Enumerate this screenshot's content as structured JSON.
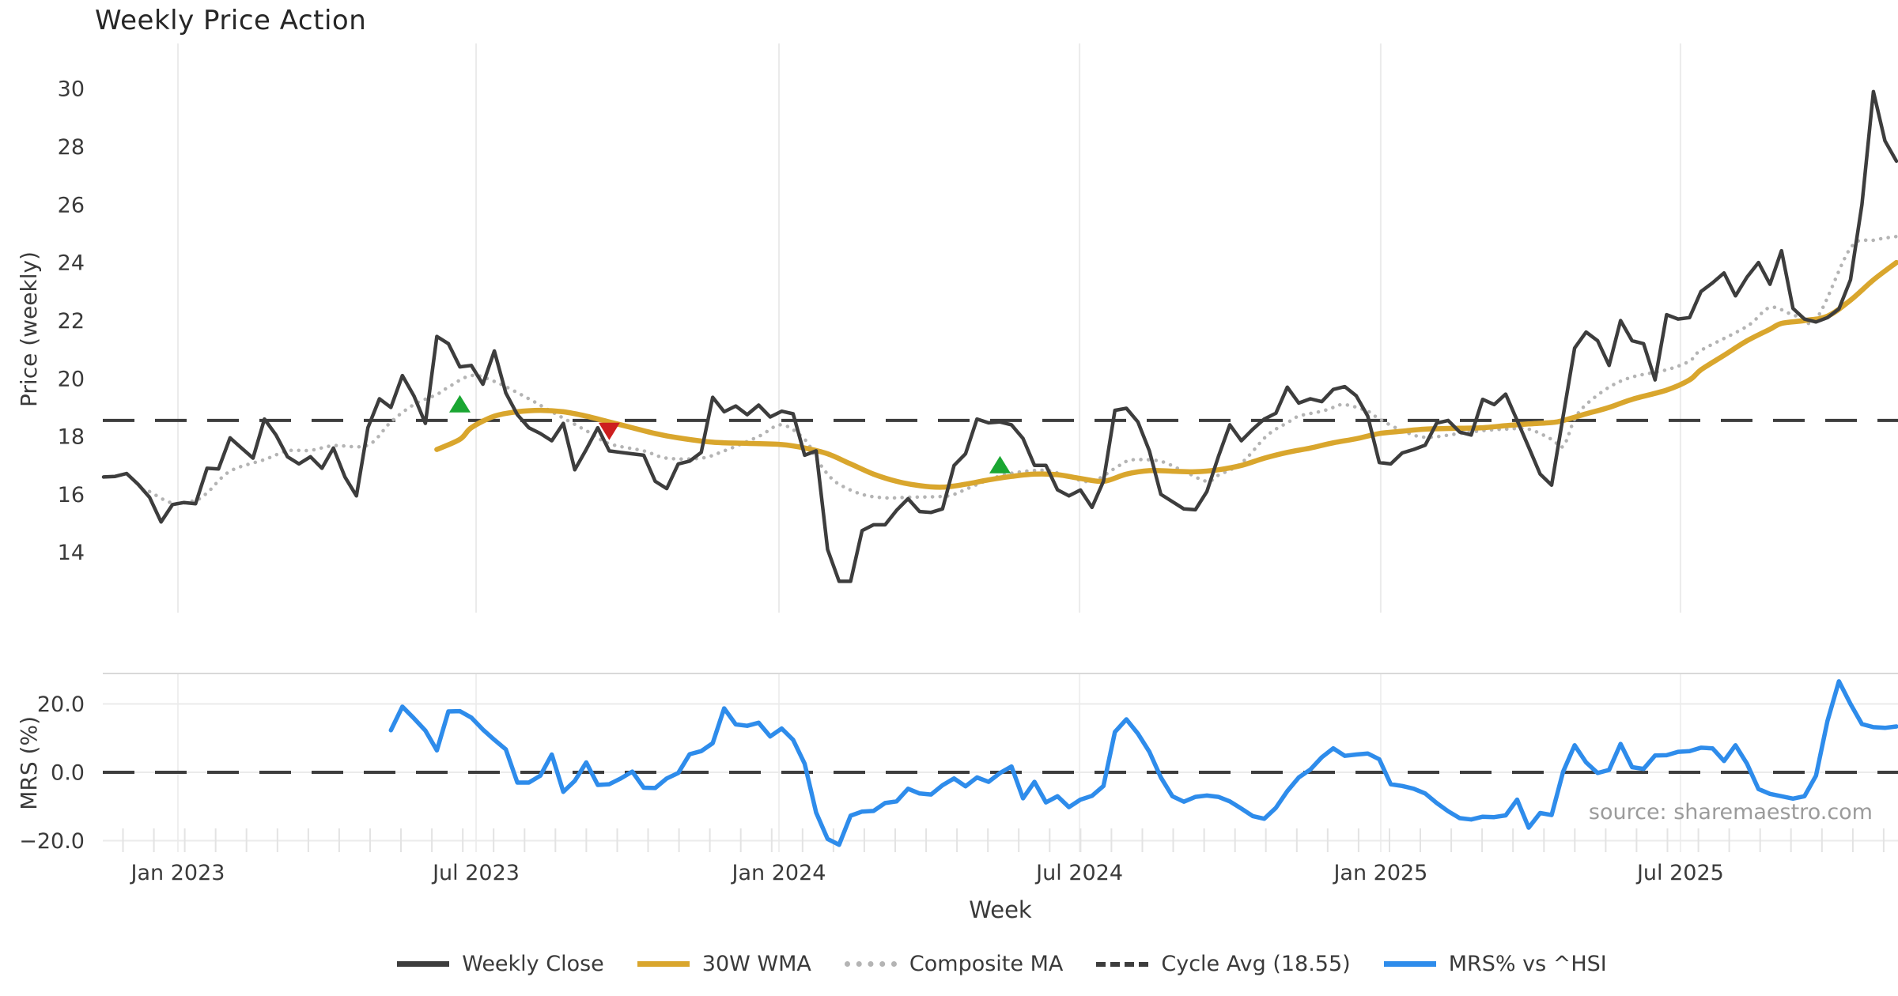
{
  "title": "Weekly Price Action",
  "source_note": "source: sharemaestro.com",
  "axes": {
    "price": {
      "label": "Price (weekly)",
      "ticks": [
        14,
        16,
        18,
        20,
        22,
        24,
        26,
        28,
        30
      ],
      "ylim": [
        11.92,
        31.56
      ]
    },
    "mrs": {
      "label": "MRS (%)",
      "ticks": [
        {
          "label": "20.0",
          "value": 20
        },
        {
          "label": "0.0",
          "value": 0
        },
        {
          "label": "−20.0",
          "value": -20
        }
      ],
      "ylim": [
        -23.35,
        28.9
      ]
    },
    "x": {
      "label": "Week",
      "ticks": [
        {
          "label": "Jan 2023",
          "week": 6.47
        },
        {
          "label": "Jul 2023",
          "week": 32.41
        },
        {
          "label": "Jan 2024",
          "week": 58.77
        },
        {
          "label": "Jul 2024",
          "week": 84.92
        },
        {
          "label": "Jan 2025",
          "week": 111.13
        },
        {
          "label": "Jul 2025",
          "week": 137.21
        }
      ]
    }
  },
  "legend": [
    {
      "label": "Weekly Close",
      "color": "#3d3d3d",
      "style": "solid"
    },
    {
      "label": "30W WMA",
      "color": "#d9a62d",
      "style": "solid"
    },
    {
      "label": "Composite MA",
      "color": "#b4b4b4",
      "style": "dotted"
    },
    {
      "label": "Cycle Avg (18.55)",
      "color": "#3d3d3d",
      "style": "dashed"
    },
    {
      "label": "MRS% vs ^HSI",
      "color": "#2e8ceb",
      "style": "solid"
    }
  ],
  "chart_data": {
    "type": "line",
    "title": "Weekly Price Action",
    "xlabel": "Week",
    "x_unit": "week_index",
    "panels": {
      "price": {
        "ylabel": "Price (weekly)",
        "ylim": [
          11.92,
          31.56
        ]
      },
      "mrs": {
        "ylabel": "MRS (%)",
        "ylim": [
          -23.35,
          28.9
        ]
      }
    },
    "cycle_avg": {
      "name": "Cycle Avg (18.55)",
      "value": 18.55,
      "color": "#3d3d3d"
    },
    "mrs_zero_line": {
      "value": 0,
      "color": "#3d3d3d"
    },
    "series": [
      {
        "name": "Weekly Close",
        "panel": "price",
        "color": "#3d3d3d",
        "style": "solid",
        "start_week": 0,
        "values": [
          16.6,
          16.62,
          16.72,
          16.35,
          15.9,
          15.05,
          15.65,
          15.72,
          15.68,
          16.9,
          16.88,
          17.95,
          17.6,
          17.25,
          18.6,
          18.05,
          17.3,
          17.05,
          17.3,
          16.9,
          17.6,
          16.6,
          15.95,
          18.3,
          19.3,
          19.0,
          20.1,
          19.4,
          18.45,
          21.45,
          21.2,
          20.4,
          20.45,
          19.8,
          20.95,
          19.5,
          18.75,
          18.3,
          18.1,
          17.85,
          18.45,
          16.85,
          17.55,
          18.3,
          17.5,
          17.45,
          17.4,
          17.35,
          16.45,
          16.2,
          17.05,
          17.15,
          17.45,
          19.35,
          18.85,
          19.05,
          18.75,
          19.08,
          18.67,
          18.87,
          18.78,
          17.35,
          17.5,
          14.1,
          13.0,
          13.0,
          14.75,
          14.95,
          14.95,
          15.45,
          15.85,
          15.41,
          15.38,
          15.5,
          17.0,
          17.4,
          18.6,
          18.47,
          18.5,
          18.4,
          17.93,
          17.0,
          17.0,
          16.16,
          15.95,
          16.15,
          15.55,
          16.45,
          18.9,
          18.97,
          18.5,
          17.5,
          16.0,
          15.75,
          15.5,
          15.47,
          16.1,
          17.3,
          18.4,
          17.85,
          18.25,
          18.6,
          18.8,
          19.7,
          19.15,
          19.3,
          19.2,
          19.62,
          19.72,
          19.4,
          18.7,
          17.1,
          17.05,
          17.43,
          17.55,
          17.7,
          18.46,
          18.55,
          18.15,
          18.05,
          19.28,
          19.1,
          19.46,
          18.55,
          17.63,
          16.7,
          16.32,
          18.7,
          21.05,
          21.6,
          21.3,
          20.45,
          22.0,
          21.3,
          21.2,
          19.95,
          22.2,
          22.05,
          22.1,
          23.0,
          23.3,
          23.64,
          22.85,
          23.5,
          24.0,
          23.25,
          24.41,
          22.42,
          22.05,
          21.95,
          22.1,
          22.4,
          23.4,
          26.0,
          29.9,
          28.2,
          27.5
        ]
      },
      {
        "name": "30W WMA",
        "panel": "price",
        "color": "#d9a62d",
        "style": "solid",
        "points": [
          [
            29,
            17.55
          ],
          [
            31,
            17.9
          ],
          [
            32,
            18.3
          ],
          [
            34,
            18.7
          ],
          [
            36,
            18.85
          ],
          [
            38,
            18.9
          ],
          [
            40,
            18.85
          ],
          [
            42,
            18.7
          ],
          [
            44,
            18.5
          ],
          [
            46,
            18.3
          ],
          [
            48,
            18.1
          ],
          [
            50,
            17.95
          ],
          [
            53,
            17.8
          ],
          [
            56,
            17.76
          ],
          [
            59,
            17.72
          ],
          [
            61,
            17.6
          ],
          [
            63,
            17.4
          ],
          [
            65,
            17.05
          ],
          [
            67,
            16.7
          ],
          [
            69,
            16.45
          ],
          [
            71,
            16.3
          ],
          [
            73,
            16.25
          ],
          [
            75,
            16.35
          ],
          [
            77,
            16.5
          ],
          [
            79,
            16.62
          ],
          [
            81,
            16.7
          ],
          [
            83,
            16.68
          ],
          [
            85,
            16.55
          ],
          [
            87,
            16.45
          ],
          [
            89,
            16.7
          ],
          [
            91,
            16.82
          ],
          [
            93,
            16.8
          ],
          [
            95,
            16.78
          ],
          [
            97,
            16.85
          ],
          [
            99,
            17.0
          ],
          [
            101,
            17.25
          ],
          [
            103,
            17.45
          ],
          [
            105,
            17.6
          ],
          [
            107,
            17.78
          ],
          [
            109,
            17.92
          ],
          [
            111,
            18.1
          ],
          [
            113,
            18.18
          ],
          [
            115,
            18.25
          ],
          [
            118,
            18.28
          ],
          [
            120,
            18.3
          ],
          [
            122,
            18.37
          ],
          [
            124,
            18.43
          ],
          [
            126,
            18.48
          ],
          [
            127,
            18.55
          ],
          [
            129,
            18.78
          ],
          [
            131,
            19.0
          ],
          [
            133,
            19.28
          ],
          [
            136,
            19.6
          ],
          [
            138,
            19.95
          ],
          [
            139,
            20.3
          ],
          [
            141,
            20.8
          ],
          [
            143,
            21.3
          ],
          [
            145,
            21.7
          ],
          [
            146,
            21.9
          ],
          [
            148,
            22.0
          ],
          [
            150,
            22.15
          ],
          [
            152,
            22.7
          ],
          [
            154,
            23.4
          ],
          [
            156,
            24.0
          ]
        ]
      },
      {
        "name": "Composite MA",
        "panel": "price",
        "color": "#b4b4b4",
        "style": "dotted",
        "points": [
          [
            4,
            16.1
          ],
          [
            6,
            15.7
          ],
          [
            8,
            15.8
          ],
          [
            9,
            16.05
          ],
          [
            11,
            16.8
          ],
          [
            14,
            17.2
          ],
          [
            16,
            17.5
          ],
          [
            18,
            17.52
          ],
          [
            20,
            17.68
          ],
          [
            23,
            17.7
          ],
          [
            25,
            18.5
          ],
          [
            27,
            19.1
          ],
          [
            29,
            19.45
          ],
          [
            30,
            19.7
          ],
          [
            32,
            20.1
          ],
          [
            34,
            19.9
          ],
          [
            37,
            19.3
          ],
          [
            39,
            18.85
          ],
          [
            42,
            18.2
          ],
          [
            44,
            17.75
          ],
          [
            47,
            17.5
          ],
          [
            49,
            17.25
          ],
          [
            52,
            17.25
          ],
          [
            54,
            17.5
          ],
          [
            57,
            18.0
          ],
          [
            59,
            18.4
          ],
          [
            61,
            17.9
          ],
          [
            62,
            17.25
          ],
          [
            63,
            16.7
          ],
          [
            64,
            16.35
          ],
          [
            66,
            16.0
          ],
          [
            68,
            15.88
          ],
          [
            70,
            15.9
          ],
          [
            73,
            15.93
          ],
          [
            74,
            16.0
          ],
          [
            75,
            16.17
          ],
          [
            77,
            16.5
          ],
          [
            79,
            16.73
          ],
          [
            82,
            16.83
          ],
          [
            84,
            16.6
          ],
          [
            86,
            16.45
          ],
          [
            88,
            16.9
          ],
          [
            89,
            17.14
          ],
          [
            90,
            17.2
          ],
          [
            92,
            17.14
          ],
          [
            94,
            16.8
          ],
          [
            96,
            16.45
          ],
          [
            97,
            16.66
          ],
          [
            99,
            17.08
          ],
          [
            101,
            17.94
          ],
          [
            102,
            18.25
          ],
          [
            103,
            18.47
          ],
          [
            104,
            18.7
          ],
          [
            106,
            18.87
          ],
          [
            107,
            19.0
          ],
          [
            108,
            19.1
          ],
          [
            110,
            18.87
          ],
          [
            111,
            18.6
          ],
          [
            113,
            18.2
          ],
          [
            115,
            17.97
          ],
          [
            118,
            18.1
          ],
          [
            120,
            18.2
          ],
          [
            122,
            18.25
          ],
          [
            124,
            18.25
          ],
          [
            126,
            17.9
          ],
          [
            127,
            17.66
          ],
          [
            128,
            18.6
          ],
          [
            129,
            19.1
          ],
          [
            131,
            19.7
          ],
          [
            133,
            20.05
          ],
          [
            136,
            20.3
          ],
          [
            138,
            20.6
          ],
          [
            139,
            20.97
          ],
          [
            143,
            21.8
          ],
          [
            145,
            22.45
          ],
          [
            147,
            22.2
          ],
          [
            149,
            22.05
          ],
          [
            152,
            24.5
          ],
          [
            154,
            24.77
          ],
          [
            156,
            24.9
          ]
        ]
      },
      {
        "name": "MRS% vs ^HSI",
        "panel": "mrs",
        "color": "#2e8ceb",
        "style": "solid",
        "start_week": 25,
        "values": [
          12.3,
          19.2,
          15.8,
          12.2,
          6.4,
          17.8,
          17.9,
          16.0,
          12.5,
          9.5,
          6.7,
          -3.0,
          -3.0,
          -1.0,
          5.2,
          -5.7,
          -2.5,
          2.9,
          -3.7,
          -3.5,
          -1.8,
          0.2,
          -4.5,
          -4.6,
          -1.8,
          -0.2,
          5.3,
          6.2,
          8.5,
          18.7,
          14.0,
          13.6,
          14.5,
          10.5,
          12.8,
          9.5,
          2.5,
          -11.8,
          -19.5,
          -21.2,
          -12.7,
          -11.5,
          -11.3,
          -9.0,
          -8.5,
          -4.8,
          -6.2,
          -6.5,
          -3.8,
          -1.8,
          -4.1,
          -1.5,
          -2.8,
          -0.2,
          1.7,
          -7.6,
          -2.8,
          -8.8,
          -7.0,
          -10.2,
          -8.0,
          -6.9,
          -4.0,
          11.8,
          15.5,
          11.3,
          6.0,
          -1.5,
          -7.0,
          -8.6,
          -7.2,
          -6.8,
          -7.2,
          -8.5,
          -10.6,
          -12.8,
          -13.6,
          -10.4,
          -5.5,
          -1.5,
          0.8,
          4.4,
          7.0,
          4.8,
          5.2,
          5.5,
          3.8,
          -3.5,
          -4.0,
          -4.8,
          -6.2,
          -9.0,
          -11.4,
          -13.4,
          -13.8,
          -13.0,
          -13.1,
          -12.6,
          -8.0,
          -16.2,
          -11.9,
          -12.5,
          0.2,
          7.9,
          2.9,
          -0.2,
          0.7,
          8.3,
          1.5,
          1.0,
          4.9,
          5.0,
          6.0,
          6.2,
          7.2,
          7.0,
          3.3,
          7.9,
          2.5,
          -4.9,
          -6.3,
          -7.0,
          -7.7,
          -7.0,
          -1.0,
          15.0,
          26.6,
          20.0,
          14.1,
          13.2,
          13.0,
          13.4
        ]
      }
    ],
    "markers": [
      {
        "type": "buy-signal",
        "shape": "triangle-up",
        "color": "#1aa632",
        "week": 31,
        "value": 19.1
      },
      {
        "type": "sell-signal",
        "shape": "triangle-down",
        "color": "#cd1f1f",
        "week": 44,
        "value": 18.2
      },
      {
        "type": "buy-signal",
        "shape": "triangle-up",
        "color": "#1aa632",
        "week": 78,
        "value": 17.0
      }
    ],
    "legend_position": "bottom-center",
    "grid": {
      "price_vertical_gridlines": true,
      "mrs_horizontal_gridlines": true
    }
  }
}
